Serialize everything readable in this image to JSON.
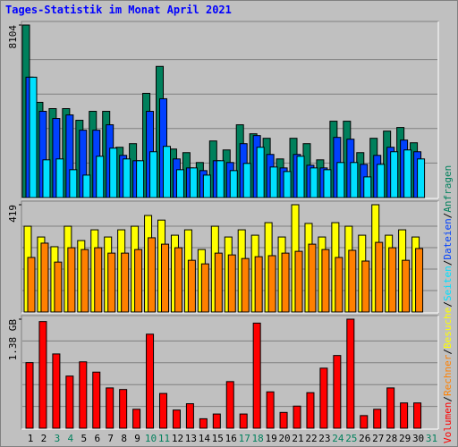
{
  "chart_data": [
    {
      "type": "bar",
      "title": "Tages-Statistik im Monat April 2021",
      "ylim": [
        0,
        8104
      ],
      "yticks": [
        8104
      ],
      "series": [
        {
          "name": "Anfragen",
          "color": "#00805c",
          "values": [
            8104,
            4474,
            4178,
            4178,
            3630,
            4051,
            4051,
            2363,
            2532,
            4895,
            6161,
            2279,
            2110,
            1646,
            2659,
            2237,
            3418,
            2996,
            2785,
            1815,
            2785,
            2532,
            1772,
            3587,
            3587,
            2110,
            2785,
            3123,
            3292,
            2574,
            null
          ]
        },
        {
          "name": "Dateien",
          "color": "#0040ff",
          "values": [
            5655,
            4051,
            3714,
            3882,
            3165,
            3165,
            3418,
            1983,
            1730,
            4051,
            4642,
            1815,
            1393,
            1266,
            1730,
            1646,
            2532,
            2912,
            2026,
            1393,
            2026,
            1519,
            1393,
            2827,
            2743,
            1561,
            1983,
            2363,
            2701,
            2152,
            null
          ]
        },
        {
          "name": "Seiten",
          "color": "#00e0ff",
          "values": [
            5655,
            1772,
            1815,
            1308,
            1055,
            1941,
            2321,
            1815,
            1730,
            2152,
            2405,
            1308,
            1393,
            1055,
            1730,
            1266,
            1604,
            2363,
            1435,
            1224,
            1941,
            1393,
            1308,
            1646,
            1646,
            971,
            1561,
            2152,
            2237,
            1815,
            null
          ]
        }
      ]
    },
    {
      "type": "bar",
      "ylim": [
        0,
        419
      ],
      "yticks": [
        419
      ],
      "series": [
        {
          "name": "Besuche",
          "color": "#ffff00",
          "values": [
            335,
            293,
            255,
            335,
            279,
            321,
            293,
            321,
            335,
            377,
            359,
            300,
            321,
            244,
            335,
            293,
            321,
            300,
            349,
            293,
            419,
            346,
            293,
            349,
            335,
            300,
            419,
            300,
            321,
            293,
            null
          ]
        },
        {
          "name": "Rechner",
          "color": "#ff8000",
          "values": [
            213,
            269,
            195,
            251,
            244,
            251,
            230,
            230,
            244,
            290,
            265,
            251,
            202,
            188,
            230,
            223,
            209,
            216,
            220,
            230,
            237,
            265,
            244,
            213,
            241,
            199,
            272,
            251,
            202,
            248,
            null
          ]
        }
      ]
    },
    {
      "type": "bar",
      "ylim": [
        0,
        1.38
      ],
      "yticks": [
        {
          "value": 1.38,
          "label": "1.38 GB"
        }
      ],
      "categories": [
        "1",
        "2",
        "3",
        "4",
        "5",
        "6",
        "7",
        "8",
        "9",
        "10",
        "11",
        "12",
        "13",
        "14",
        "15",
        "16",
        "17",
        "18",
        "19",
        "20",
        "21",
        "22",
        "23",
        "24",
        "25",
        "26",
        "27",
        "28",
        "29",
        "30",
        "31"
      ],
      "category_colors": [
        "#000000",
        "#000000",
        "#00805c",
        "#00805c",
        "#000000",
        "#000000",
        "#000000",
        "#000000",
        "#000000",
        "#00805c",
        "#00805c",
        "#000000",
        "#000000",
        "#000000",
        "#000000",
        "#000000",
        "#00805c",
        "#00805c",
        "#000000",
        "#000000",
        "#000000",
        "#000000",
        "#000000",
        "#00805c",
        "#00805c",
        "#000000",
        "#000000",
        "#000000",
        "#000000",
        "#000000",
        "#00805c"
      ],
      "series": [
        {
          "name": "Volumen",
          "color": "#ff0000",
          "values": [
            0.83,
            1.35,
            0.94,
            0.66,
            0.84,
            0.71,
            0.51,
            0.49,
            0.24,
            1.19,
            0.44,
            0.23,
            0.31,
            0.12,
            0.18,
            0.59,
            0.18,
            1.33,
            0.46,
            0.2,
            0.28,
            0.45,
            0.76,
            0.92,
            1.38,
            0.16,
            0.24,
            0.51,
            0.32,
            0.32,
            null
          ]
        }
      ]
    }
  ],
  "legend_separator": "/"
}
